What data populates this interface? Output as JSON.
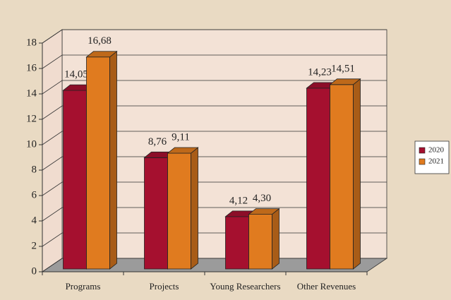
{
  "chart_data": {
    "type": "bar3d",
    "categories": [
      "Programs",
      "Projects",
      "Young Researchers",
      "Other Revenues"
    ],
    "series": [
      {
        "name": "2020",
        "color": "#a5102f",
        "values": [
          14.05,
          8.76,
          4.12,
          14.23
        ],
        "value_labels": [
          "14,05",
          "8,76",
          "4,12",
          "14,23"
        ]
      },
      {
        "name": "2021",
        "color": "#e07b1f",
        "values": [
          16.68,
          9.11,
          4.3,
          14.51
        ],
        "value_labels": [
          "16,68",
          "9,11",
          "4,30",
          "14,51"
        ]
      }
    ],
    "ylim": [
      0,
      18
    ],
    "yticks": [
      0,
      2,
      4,
      6,
      8,
      10,
      12,
      14,
      16,
      18
    ],
    "grid": true,
    "legend": "right"
  }
}
